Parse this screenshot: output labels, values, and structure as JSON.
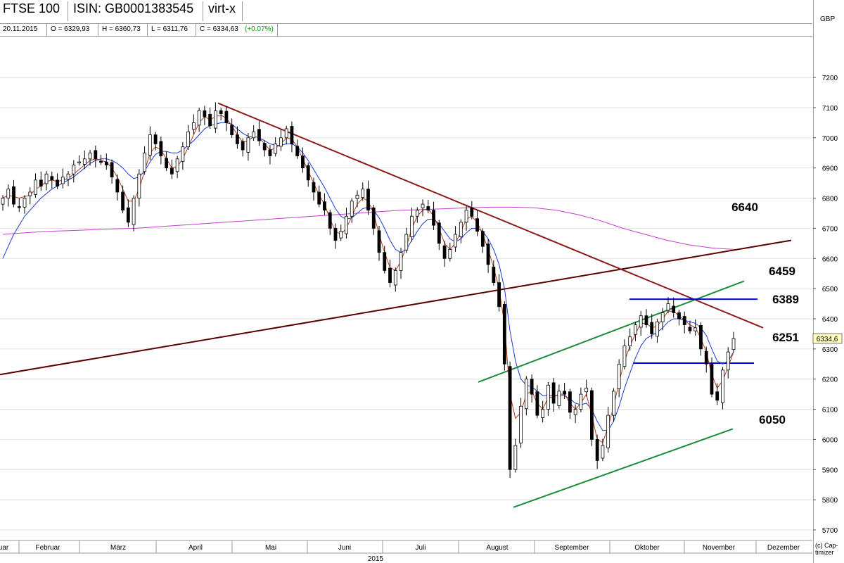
{
  "header": {
    "name": "FTSE 100",
    "isin": "ISIN: GB0001383545",
    "exchange": "virt-x",
    "currency": "GBP",
    "copyright": "(c) Cap-timizer"
  },
  "ohlc": {
    "date": "20.11.2015",
    "open": "O = 6329,93",
    "high": "H = 6360,73",
    "low": "L = 6311,76",
    "close": "C = 6334,63",
    "change": "(+0.07%)"
  },
  "chart_data": {
    "type": "candlestick",
    "title": "FTSE 100",
    "year_label": "2015",
    "y_ticks": [
      5700,
      5800,
      5900,
      6000,
      6100,
      6200,
      6300,
      6400,
      6500,
      6600,
      6700,
      6800,
      6900,
      7000,
      7100,
      7200
    ],
    "ylim": [
      5650,
      7260
    ],
    "x_months": [
      "uar",
      "Februar",
      "März",
      "April",
      "Mai",
      "Juni",
      "Juli",
      "August",
      "September",
      "Oktober",
      "November",
      "Dezember"
    ],
    "last_value_label": "6334,6",
    "last_value": 6334.6,
    "price_levels": [
      {
        "label": "6640",
        "value": 6640
      },
      {
        "label": "6459",
        "value": 6459
      },
      {
        "label": "6389",
        "value": 6389
      },
      {
        "label": "6251",
        "value": 6251
      },
      {
        "label": "6050",
        "value": 6050
      }
    ],
    "trend_lines": [
      {
        "color": "#5a0000",
        "points": [
          [
            0,
            6215
          ],
          [
            1125,
            6660
          ]
        ]
      },
      {
        "color": "#8b1a1a",
        "points": [
          [
            310,
            7115
          ],
          [
            1085,
            6370
          ]
        ]
      },
      {
        "color": "#1a8c3a",
        "points": [
          [
            680,
            6190
          ],
          [
            1058,
            6525
          ]
        ]
      },
      {
        "color": "#1a8c3a",
        "points": [
          [
            730,
            5775
          ],
          [
            1042,
            6035
          ]
        ]
      },
      {
        "color": "#0000e6",
        "points": [
          [
            895,
            6465
          ],
          [
            1077,
            6465
          ]
        ]
      },
      {
        "color": "#0000e6",
        "points": [
          [
            900,
            6253
          ],
          [
            1072,
            6253
          ]
        ]
      }
    ],
    "candle_closes": [
      6800,
      6830,
      6780,
      6770,
      6800,
      6820,
      6860,
      6840,
      6880,
      6860,
      6840,
      6870,
      6880,
      6910,
      6920,
      6930,
      6950,
      6930,
      6920,
      6910,
      6870,
      6820,
      6760,
      6720,
      6800,
      6880,
      6950,
      7010,
      6980,
      6940,
      6900,
      6880,
      6930,
      6970,
      7020,
      7050,
      7090,
      7070,
      7040,
      7090,
      7080,
      7050,
      7010,
      6980,
      6960,
      7000,
      7020,
      6990,
      6960,
      6940,
      6980,
      7000,
      7030,
      6980,
      6940,
      6900,
      6860,
      6820,
      6780,
      6760,
      6700,
      6660,
      6690,
      6740,
      6790,
      6810,
      6830,
      6760,
      6700,
      6620,
      6560,
      6520,
      6560,
      6620,
      6680,
      6740,
      6760,
      6780,
      6760,
      6710,
      6650,
      6600,
      6630,
      6680,
      6720,
      6760,
      6740,
      6690,
      6640,
      6580,
      6520,
      6440,
      6250,
      5900,
      5980,
      6110,
      6200,
      6150,
      6080,
      6100,
      6180,
      6120,
      6160,
      6150,
      6090,
      6100,
      6150,
      6170,
      6000,
      5930,
      5980,
      6080,
      6160,
      6250,
      6310,
      6340,
      6380,
      6410,
      6380,
      6350,
      6390,
      6420,
      6450,
      6420,
      6400,
      6380,
      6360,
      6370,
      6300,
      6250,
      6150,
      6130,
      6230,
      6290,
      6334.6
    ],
    "ma_short": [
      6800,
      6810,
      6805,
      6800,
      6805,
      6810,
      6830,
      6840,
      6855,
      6860,
      6855,
      6860,
      6865,
      6880,
      6895,
      6910,
      6925,
      6930,
      6925,
      6920,
      6900,
      6870,
      6830,
      6790,
      6790,
      6830,
      6890,
      6950,
      6970,
      6960,
      6930,
      6900,
      6905,
      6930,
      6970,
      7010,
      7050,
      7070,
      7060,
      7070,
      7075,
      7065,
      7040,
      7010,
      6985,
      6990,
      7005,
      7000,
      6980,
      6960,
      6965,
      6980,
      7000,
      6995,
      6970,
      6930,
      6890,
      6850,
      6810,
      6780,
      6730,
      6690,
      6680,
      6700,
      6740,
      6780,
      6800,
      6790,
      6750,
      6680,
      6620,
      6570,
      6560,
      6590,
      6640,
      6700,
      6740,
      6760,
      6765,
      6740,
      6700,
      6650,
      6630,
      6650,
      6690,
      6730,
      6740,
      6720,
      6680,
      6630,
      6570,
      6500,
      6380,
      6150,
      6070,
      6090,
      6150,
      6160,
      6120,
      6100,
      6140,
      6140,
      6150,
      6150,
      6120,
      6100,
      6120,
      6150,
      6080,
      6000,
      5990,
      6040,
      6110,
      6190,
      6260,
      6310,
      6350,
      6385,
      6385,
      6370,
      6375,
      6400,
      6425,
      6425,
      6410,
      6395,
      6380,
      6370,
      6335,
      6290,
      6215,
      6170,
      6195,
      6240,
      6290
    ],
    "ma_long": [
      6600,
      6640,
      6680,
      6710,
      6740,
      6760,
      6780,
      6800,
      6815,
      6830,
      6840,
      6850,
      6860,
      6870,
      6885,
      6900,
      6915,
      6925,
      6930,
      6930,
      6925,
      6915,
      6900,
      6880,
      6865,
      6870,
      6890,
      6920,
      6945,
      6955,
      6955,
      6950,
      6950,
      6960,
      6975,
      6990,
      7010,
      7030,
      7040,
      7045,
      7050,
      7050,
      7045,
      7030,
      7015,
      7005,
      7005,
      7000,
      6990,
      6980,
      6975,
      6975,
      6980,
      6980,
      6970,
      6950,
      6925,
      6895,
      6865,
      6835,
      6800,
      6765,
      6740,
      6730,
      6735,
      6750,
      6765,
      6770,
      6760,
      6735,
      6700,
      6660,
      6630,
      6620,
      6630,
      6660,
      6690,
      6715,
      6730,
      6730,
      6715,
      6690,
      6665,
      6655,
      6665,
      6685,
      6700,
      6700,
      6690,
      6665,
      6630,
      6580,
      6500,
      6360,
      6260,
      6200,
      6180,
      6175,
      6160,
      6145,
      6145,
      6145,
      6145,
      6145,
      6135,
      6120,
      6115,
      6120,
      6100,
      6060,
      6030,
      6030,
      6060,
      6110,
      6170,
      6220,
      6270,
      6310,
      6335,
      6345,
      6355,
      6370,
      6390,
      6400,
      6400,
      6395,
      6390,
      6385,
      6370,
      6345,
      6300,
      6260,
      6250,
      6260,
      6290
    ],
    "ma_200": [
      6680,
      6685,
      6690,
      6692,
      6695,
      6698,
      6700,
      6705,
      6710,
      6715,
      6720,
      6725,
      6730,
      6735,
      6740,
      6745,
      6750,
      6755,
      6760,
      6762,
      6765,
      6768,
      6770,
      6770,
      6768,
      6760,
      6745,
      6725,
      6700,
      6680,
      6660,
      6645,
      6635,
      6630
    ]
  }
}
